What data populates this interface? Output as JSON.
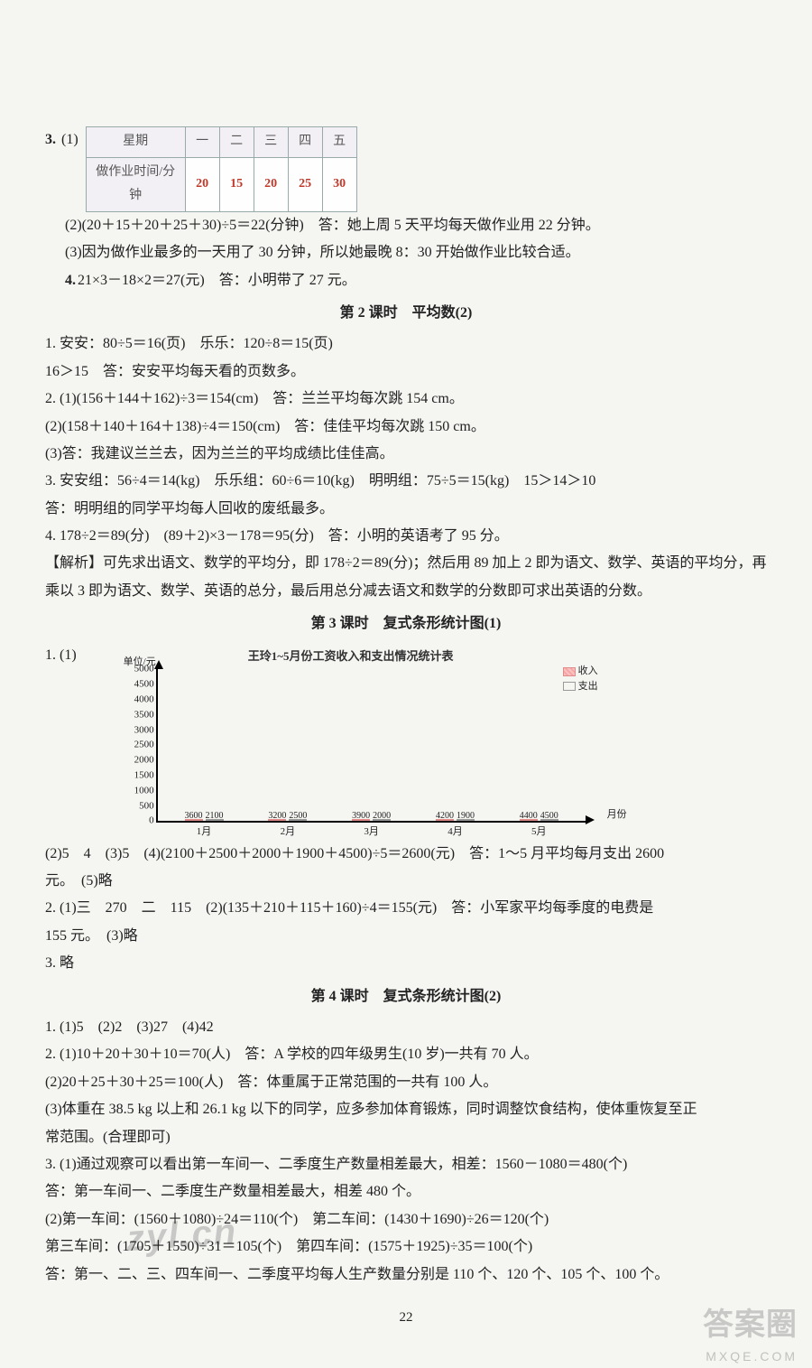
{
  "q3": {
    "num": "3.",
    "sub1": "(1)",
    "table": {
      "header_label": "星期",
      "row_label": "做作业时间/分钟",
      "days": [
        "一",
        "二",
        "三",
        "四",
        "五"
      ],
      "values": [
        "20",
        "15",
        "20",
        "25",
        "30"
      ]
    },
    "sub2": "(2)(20＋15＋20＋25＋30)÷5＝22(分钟)　答：她上周 5 天平均每天做作业用 22 分钟。",
    "sub3": "(3)因为做作业最多的一天用了 30 分钟，所以她最晚 8：30 开始做作业比较合适。"
  },
  "q4": {
    "num": "4.",
    "text": "21×3－18×2＝27(元)　答：小明带了 27 元。"
  },
  "sec2_title": "第 2 课时　平均数(2)",
  "s2_q1a": "1. 安安：80÷5＝16(页)　乐乐：120÷8＝15(页)",
  "s2_q1b": "16＞15　答：安安平均每天看的页数多。",
  "s2_q2a": "2. (1)(156＋144＋162)÷3＝154(cm)　答：兰兰平均每次跳 154 cm。",
  "s2_q2b": "(2)(158＋140＋164＋138)÷4＝150(cm)　答：佳佳平均每次跳 150 cm。",
  "s2_q2c": "(3)答：我建议兰兰去，因为兰兰的平均成绩比佳佳高。",
  "s2_q3a": "3. 安安组：56÷4＝14(kg)　乐乐组：60÷6＝10(kg)　明明组：75÷5＝15(kg)　15＞14＞10",
  "s2_q3b": "答：明明组的同学平均每人回收的废纸最多。",
  "s2_q4": "4. 178÷2＝89(分)　(89＋2)×3－178＝95(分)　答：小明的英语考了 95 分。",
  "s2_exp": "【解析】可先求出语文、数学的平均分，即 178÷2＝89(分)；然后用 89 加上 2 即为语文、数学、英语的平均分，再乘以 3 即为语文、数学、英语的总分，最后用总分减去语文和数学的分数即可求出英语的分数。",
  "sec3_title": "第 3 课时　复式条形统计图(1)",
  "chart": {
    "title": "王玲1~5月份工资收入和支出情况统计表",
    "y_unit": "单位/元",
    "y_max": 5000,
    "y_ticks": [
      "0",
      "500",
      "1000",
      "1500",
      "2000",
      "2500",
      "3000",
      "3500",
      "4000",
      "4500",
      "5000"
    ],
    "months": [
      "1月",
      "2月",
      "3月",
      "4月",
      "5月"
    ],
    "income": [
      3600,
      3200,
      3900,
      4200,
      4400
    ],
    "expense": [
      2100,
      2500,
      2000,
      1900,
      4500
    ],
    "income_color": "#f7a5a5",
    "expense_border": "#999999",
    "legend_income": "收入",
    "legend_expense": "支出",
    "x_title": "月份"
  },
  "s3_q1_lead": "1. (1)",
  "s3_q1b": "(2)5　4　(3)5　(4)(2100＋2500＋2000＋1900＋4500)÷5＝2600(元)　答：1～5 月平均每月支出 2600",
  "s3_q1b2": "元。　(5)略",
  "s3_q2a": "2. (1)三　270　二　115　(2)(135＋210＋115＋160)÷4＝155(元)　答：小军家平均每季度的电费是",
  "s3_q2b": "155 元。　(3)略",
  "s3_q3": "3. 略",
  "sec4_title": "第 4 课时　复式条形统计图(2)",
  "s4_q1": "1. (1)5　(2)2　(3)27　(4)42",
  "s4_q2a": "2. (1)10＋20＋30＋10＝70(人)　答：A 学校的四年级男生(10 岁)一共有 70 人。",
  "s4_q2b": "(2)20＋25＋30＋25＝100(人)　答：体重属于正常范围的一共有 100 人。",
  "s4_q2c": "(3)体重在 38.5 kg 以上和 26.1 kg 以下的同学，应多参加体育锻炼，同时调整饮食结构，使体重恢复至正",
  "s4_q2d": "常范围。(合理即可)",
  "s4_q3a": "3. (1)通过观察可以看出第一车间一、二季度生产数量相差最大，相差：1560－1080＝480(个)",
  "s4_q3b": "答：第一车间一、二季度生产数量相差最大，相差 480 个。",
  "s4_q3c": "(2)第一车间：(1560＋1080)÷24＝110(个)　第二车间：(1430＋1690)÷26＝120(个)",
  "s4_q3d": "第三车间：(1705＋1550)÷31＝105(个)　第四车间：(1575＋1925)÷35＝100(个)",
  "s4_q3e": "答：第一、二、三、四车间一、二季度平均每人生产数量分别是 110 个、120 个、105 个、100 个。",
  "watermark": "zyl.cn",
  "page": "22",
  "corner": "答案圈",
  "corner_sub": "MXQE.COM"
}
